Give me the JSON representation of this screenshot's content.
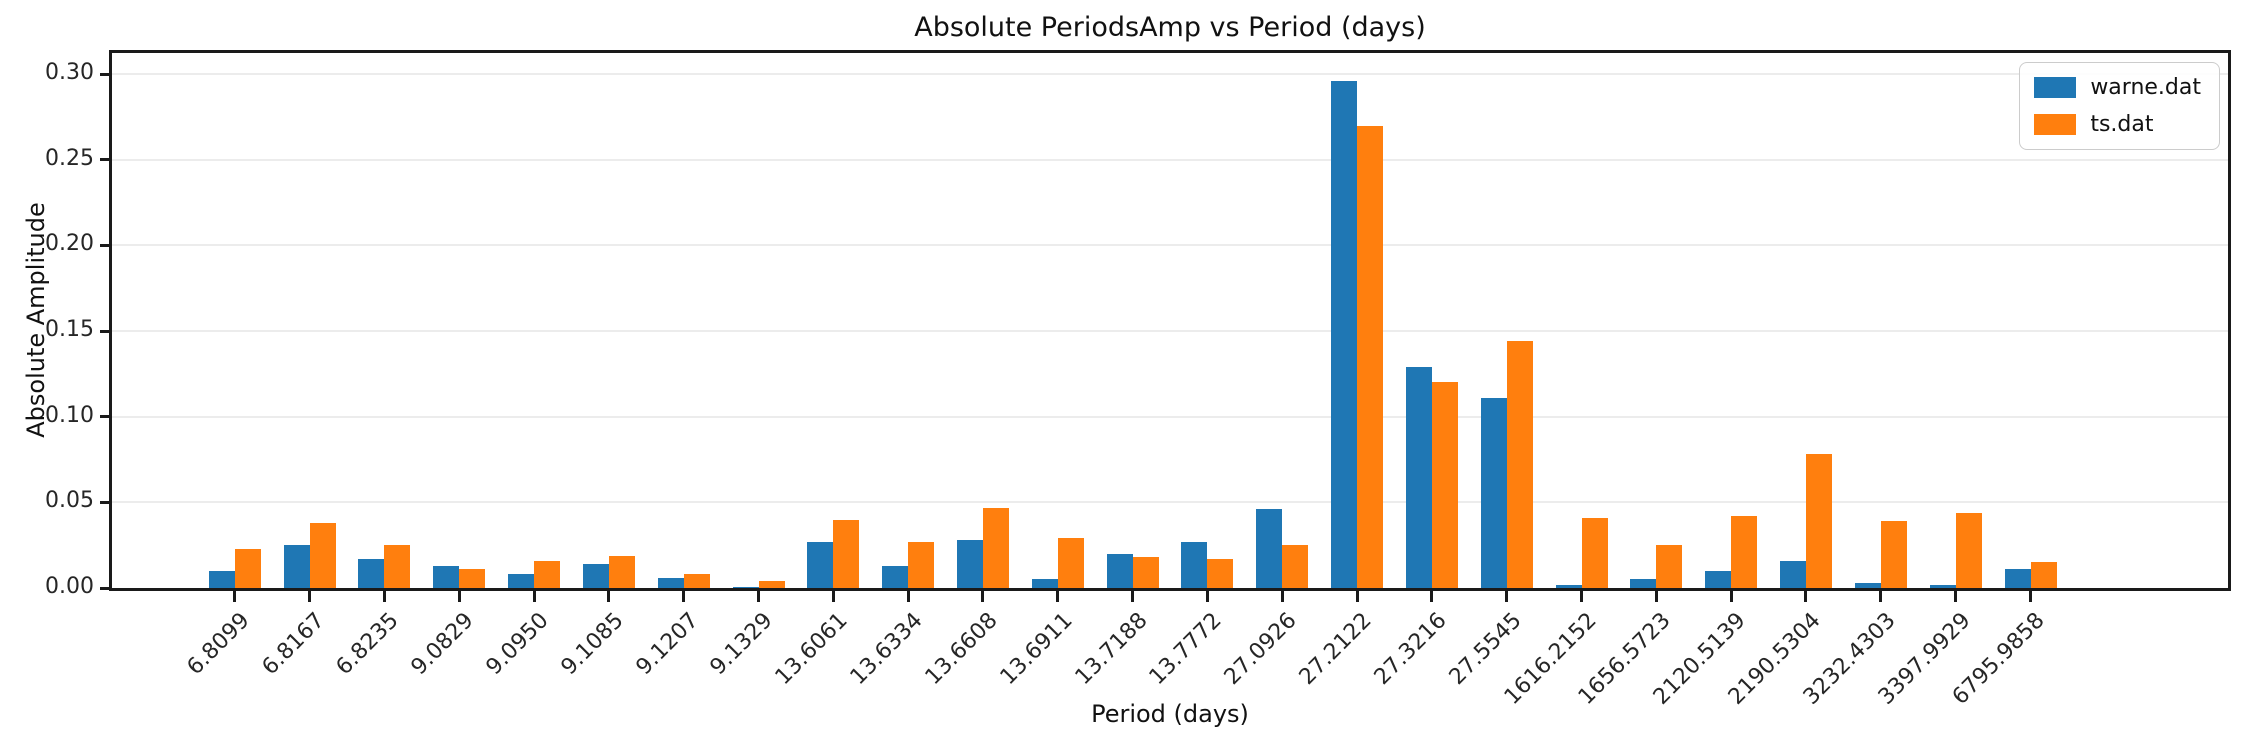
{
  "chart_data": {
    "type": "bar",
    "title": "Absolute PeriodsAmp vs Period (days)",
    "xlabel": "Period (days)",
    "ylabel": "Absolute Amplitude",
    "categories": [
      "6.8099",
      "6.8167",
      "6.8235",
      "9.0829",
      "9.0950",
      "9.1085",
      "9.1207",
      "9.1329",
      "13.6061",
      "13.6334",
      "13.6608",
      "13.6911",
      "13.7188",
      "13.7772",
      "27.0926",
      "27.2122",
      "27.3216",
      "27.5545",
      "1616.2152",
      "1656.5723",
      "2120.5139",
      "2190.5304",
      "3232.4303",
      "3397.9929",
      "6795.9858"
    ],
    "series": [
      {
        "name": "warne.dat",
        "color": "#1f77b4",
        "values": [
          0.01,
          0.025,
          0.017,
          0.013,
          0.008,
          0.014,
          0.006,
          0.0005,
          0.027,
          0.013,
          0.028,
          0.005,
          0.02,
          0.027,
          0.046,
          0.296,
          0.129,
          0.111,
          0.002,
          0.005,
          0.01,
          0.016,
          0.003,
          0.002,
          0.011
        ]
      },
      {
        "name": "ts.dat",
        "color": "#ff7f0e",
        "values": [
          0.023,
          0.038,
          0.025,
          0.011,
          0.016,
          0.019,
          0.008,
          0.004,
          0.04,
          0.027,
          0.047,
          0.029,
          0.018,
          0.017,
          0.025,
          0.27,
          0.12,
          0.144,
          0.041,
          0.025,
          0.042,
          0.078,
          0.039,
          0.044,
          0.015
        ]
      }
    ],
    "ylim": [
      0,
      0.3123
    ],
    "yticks": [
      "0.00",
      "0.05",
      "0.10",
      "0.15",
      "0.20",
      "0.25",
      "0.30"
    ],
    "grid": "horizontal",
    "legend_position": "top-right",
    "bar_width": 0.35,
    "x_tick_rotation": 45
  },
  "colors": {
    "spine": "#1a1a1a",
    "grid": "#ececec",
    "tick_text": "#262626"
  }
}
